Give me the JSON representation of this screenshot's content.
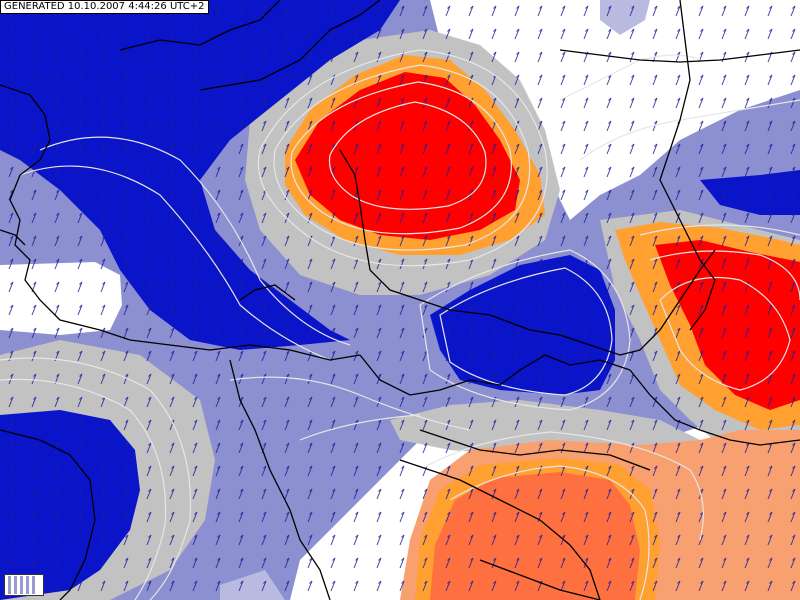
{
  "header": {
    "generated_label": "GENERATED 10.10.2007 4:44:26 UTC+2"
  },
  "colors": {
    "deep_blue": "#0a14c8",
    "mid_blue": "#3a46c8",
    "light_blue": "#8c8fd0",
    "pale_blue": "#b8badf",
    "gray_band": "#c2c2c2",
    "white_area": "#ffffff",
    "light_orange": "#f8a070",
    "orange": "#ff7040",
    "amber_band": "#ffa030",
    "bright_red": "#ff0000",
    "border_color": "#000000",
    "contour_color": "#e6e6e6",
    "wind_glyph_color": "#1e1e9a"
  },
  "icons": {
    "legend": "color-scale-legend-icon"
  }
}
